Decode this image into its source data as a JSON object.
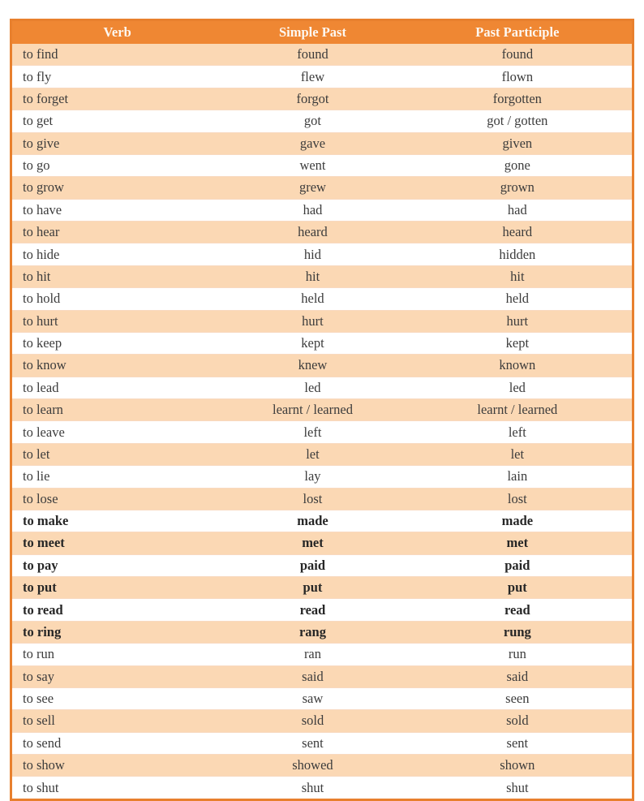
{
  "colors": {
    "header_bg": "#ef8733",
    "header_text": "#fdf8f2",
    "alt_row_bg": "#fbd8b4",
    "plain_row_bg": "#ffffff",
    "outer_border": "#e8802e",
    "body_text": "#3c3c3c"
  },
  "table": {
    "headers": [
      "Verb",
      "Simple Past",
      "Past Participle"
    ],
    "rows": [
      {
        "verb": "to find",
        "past": "found",
        "participle": "found",
        "bold": false
      },
      {
        "verb": "to fly",
        "past": "flew",
        "participle": "flown",
        "bold": false
      },
      {
        "verb": "to forget",
        "past": "forgot",
        "participle": "forgotten",
        "bold": false
      },
      {
        "verb": "to get",
        "past": "got",
        "participle": "got / gotten",
        "bold": false
      },
      {
        "verb": "to give",
        "past": "gave",
        "participle": "given",
        "bold": false
      },
      {
        "verb": "to go",
        "past": "went",
        "participle": "gone",
        "bold": false
      },
      {
        "verb": "to grow",
        "past": "grew",
        "participle": "grown",
        "bold": false
      },
      {
        "verb": "to have",
        "past": "had",
        "participle": "had",
        "bold": false
      },
      {
        "verb": "to hear",
        "past": "heard",
        "participle": "heard",
        "bold": false
      },
      {
        "verb": "to hide",
        "past": "hid",
        "participle": "hidden",
        "bold": false
      },
      {
        "verb": "to hit",
        "past": "hit",
        "participle": "hit",
        "bold": false
      },
      {
        "verb": "to hold",
        "past": "held",
        "participle": "held",
        "bold": false
      },
      {
        "verb": "to hurt",
        "past": "hurt",
        "participle": "hurt",
        "bold": false
      },
      {
        "verb": "to keep",
        "past": "kept",
        "participle": "kept",
        "bold": false
      },
      {
        "verb": "to know",
        "past": "knew",
        "participle": "known",
        "bold": false
      },
      {
        "verb": "to lead",
        "past": "led",
        "participle": "led",
        "bold": false
      },
      {
        "verb": "to learn",
        "past": "learnt / learned",
        "participle": "learnt / learned",
        "bold": false
      },
      {
        "verb": "to leave",
        "past": "left",
        "participle": "left",
        "bold": false
      },
      {
        "verb": "to let",
        "past": "let",
        "participle": "let",
        "bold": false
      },
      {
        "verb": "to lie",
        "past": "lay",
        "participle": "lain",
        "bold": false
      },
      {
        "verb": "to lose",
        "past": "lost",
        "participle": "lost",
        "bold": false
      },
      {
        "verb": "to make",
        "past": "made",
        "participle": "made",
        "bold": true
      },
      {
        "verb": "to meet",
        "past": "met",
        "participle": "met",
        "bold": true
      },
      {
        "verb": "to pay",
        "past": "paid",
        "participle": "paid",
        "bold": true
      },
      {
        "verb": "to put",
        "past": "put",
        "participle": "put",
        "bold": true
      },
      {
        "verb": "to read",
        "past": "read",
        "participle": "read",
        "bold": true
      },
      {
        "verb": "to ring",
        "past": "rang",
        "participle": "rung",
        "bold": true
      },
      {
        "verb": "to run",
        "past": "ran",
        "participle": "run",
        "bold": false
      },
      {
        "verb": "to say",
        "past": "said",
        "participle": "said",
        "bold": false
      },
      {
        "verb": "to see",
        "past": "saw",
        "participle": "seen",
        "bold": false
      },
      {
        "verb": "to sell",
        "past": "sold",
        "participle": "sold",
        "bold": false
      },
      {
        "verb": "to send",
        "past": "sent",
        "participle": "sent",
        "bold": false
      },
      {
        "verb": "to show",
        "past": "showed",
        "participle": "shown",
        "bold": false
      },
      {
        "verb": "to shut",
        "past": "shut",
        "participle": "shut",
        "bold": false
      }
    ]
  }
}
